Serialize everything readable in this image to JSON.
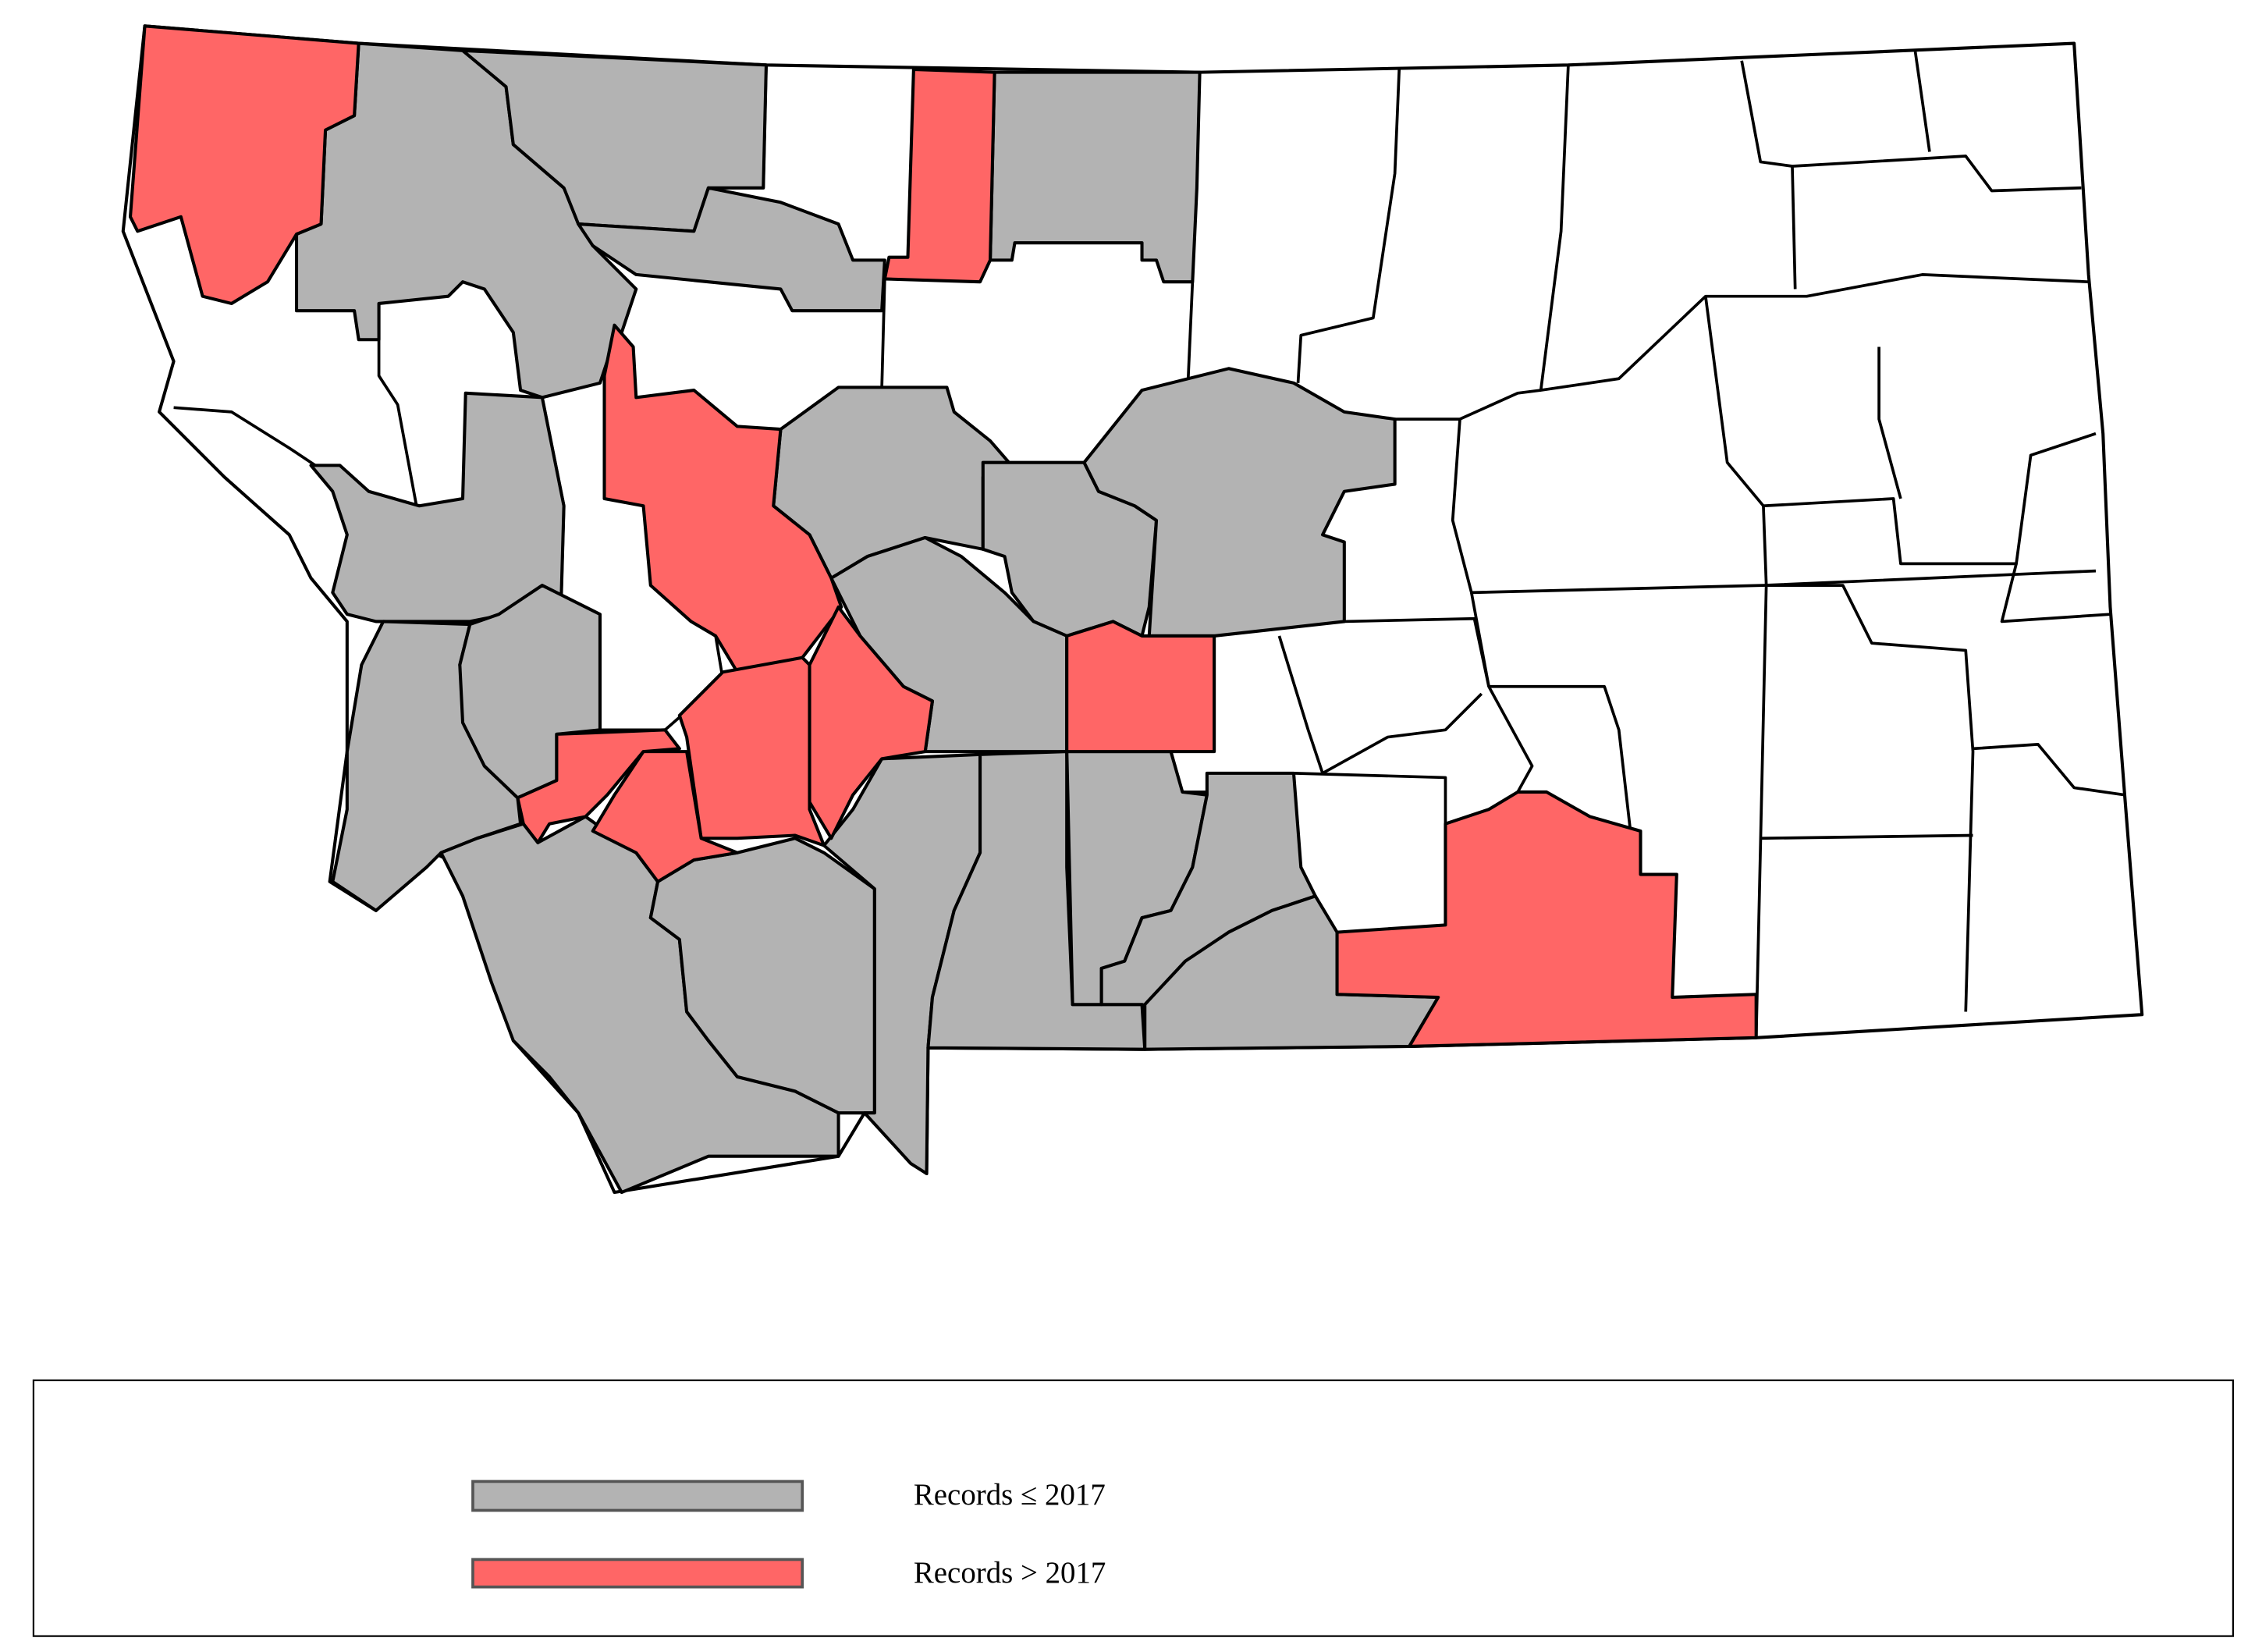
{
  "map": {
    "region": "Montana counties",
    "colors": {
      "records_le_2017": "#b3b3b3",
      "records_gt_2017": "#ff6666",
      "no_records": "#ffffff",
      "border": "#000000"
    }
  },
  "legend": {
    "items": [
      {
        "label": "Records ≤ 2017",
        "color": "#b3b3b3"
      },
      {
        "label": "Records > 2017",
        "color": "#ff6666"
      }
    ]
  }
}
